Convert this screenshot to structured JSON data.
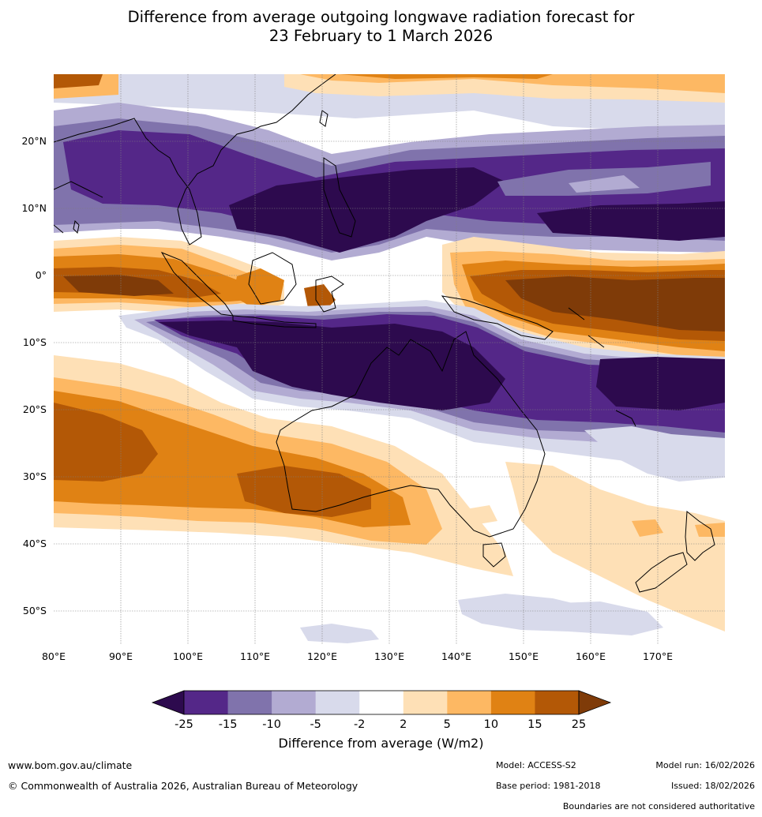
{
  "title": {
    "line1": "Difference from average outgoing longwave radiation forecast for",
    "line2": "23 February to 1 March 2026"
  },
  "map": {
    "lat_labels": [
      "20°N",
      "10°N",
      "0°",
      "10°S",
      "20°S",
      "30°S",
      "40°S",
      "50°S"
    ],
    "lon_labels": [
      "80°E",
      "90°E",
      "100°E",
      "110°E",
      "120°E",
      "130°E",
      "140°E",
      "150°E",
      "160°E",
      "170°E"
    ]
  },
  "colorbar": {
    "ticks": [
      "-25",
      "-15",
      "-10",
      "-5",
      "-2",
      "2",
      "5",
      "10",
      "15",
      "25"
    ],
    "colors": [
      "#2d0a4e",
      "#542788",
      "#8073ac",
      "#b2abd2",
      "#d8daeb",
      "#ffffff",
      "#fee0b6",
      "#fdb863",
      "#e08214",
      "#b35806",
      "#7f3b08"
    ],
    "label": "Difference from average (W/m2)"
  },
  "footer": {
    "url": "www.bom.gov.au/climate",
    "copyright": "© Commonwealth of Australia 2026, Australian Bureau of Meteorology",
    "model": "Model: ACCESS-S2",
    "base_period": "Base period: 1981-2018",
    "model_run": "Model run: 16/02/2026",
    "issued": "Issued: 18/02/2026",
    "boundaries_note": "Boundaries are not considered authoritative"
  }
}
